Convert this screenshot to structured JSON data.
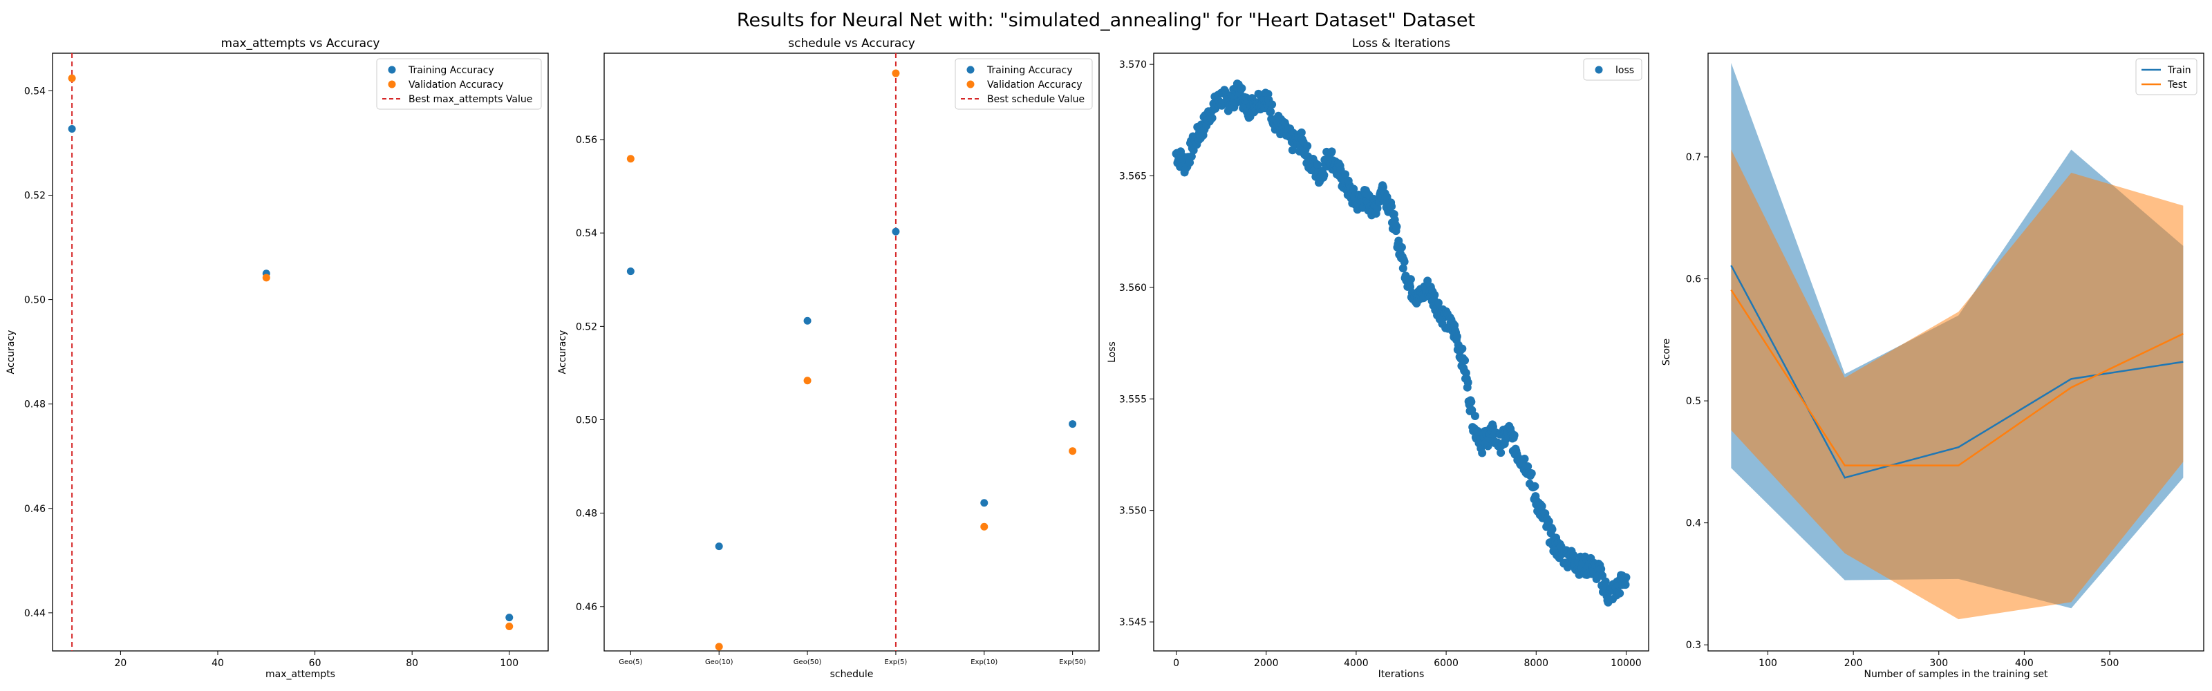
{
  "figure": {
    "title": "Results for Neural Net with: \"simulated_annealing\" for \"Heart Dataset\" Dataset"
  },
  "colors": {
    "train": "#1f77b4",
    "validation": "#ff7f0e",
    "best_line": "#d62728",
    "train_band": "#1f77b4",
    "test_band": "#ff7f0e"
  },
  "chart_data": [
    {
      "type": "scatter",
      "title": "max_attempts vs Accuracy",
      "xlabel": "max_attempts",
      "ylabel": "Accuracy",
      "xlim": [
        6,
        108
      ],
      "ylim": [
        0.4327,
        0.5472
      ],
      "xticks": [
        20,
        40,
        60,
        80,
        100
      ],
      "yticks": [
        0.44,
        0.46,
        0.48,
        0.5,
        0.52,
        0.54
      ],
      "ytick_labels": [
        "0.44",
        "0.46",
        "0.48",
        "0.50",
        "0.52",
        "0.54"
      ],
      "series": [
        {
          "name": "Training Accuracy",
          "x": [
            10,
            50,
            100
          ],
          "values": [
            0.5327,
            0.505,
            0.4391
          ]
        },
        {
          "name": "Validation Accuracy",
          "x": [
            10,
            50,
            100
          ],
          "values": [
            0.5424,
            0.5042,
            0.4374
          ]
        }
      ],
      "vline": {
        "name": "Best max_attempts Value",
        "x": 10
      },
      "legend": "top-right",
      "grid": false
    },
    {
      "type": "scatter",
      "title": "schedule vs Accuracy",
      "xlabel": "schedule",
      "ylabel": "Accuracy",
      "categories": [
        "Geo(5)",
        "Geo(10)",
        "Geo(50)",
        "Exp(5)",
        "Exp(10)",
        "Exp(50)"
      ],
      "ylim": [
        0.4505,
        0.5785
      ],
      "yticks": [
        0.46,
        0.48,
        0.5,
        0.52,
        0.54,
        0.56
      ],
      "ytick_labels": [
        "0.46",
        "0.48",
        "0.50",
        "0.52",
        "0.54",
        "0.56"
      ],
      "series": [
        {
          "name": "Training Accuracy",
          "values": [
            0.5318,
            0.4729,
            0.5212,
            0.5403,
            0.4822,
            0.4991
          ]
        },
        {
          "name": "Validation Accuracy",
          "values": [
            0.5559,
            0.4514,
            0.5084,
            0.5742,
            0.4771,
            0.4933
          ]
        }
      ],
      "vline": {
        "name": "Best schedule Value",
        "category": "Exp(5)"
      },
      "legend": "top-right",
      "grid": false
    },
    {
      "type": "scatter",
      "title": "Loss & Iterations",
      "xlabel": "Iterations",
      "ylabel": "Loss",
      "xlim": [
        -500,
        10500
      ],
      "ylim": [
        3.5437,
        3.5705
      ],
      "xticks": [
        0,
        2000,
        4000,
        6000,
        8000,
        10000
      ],
      "yticks": [
        3.545,
        3.55,
        3.555,
        3.56,
        3.565,
        3.57
      ],
      "ytick_labels": [
        "3.545",
        "3.550",
        "3.555",
        "3.560",
        "3.565",
        "3.570"
      ],
      "series": [
        {
          "name": "loss",
          "x": [
            0,
            200,
            400,
            600,
            800,
            1000,
            1200,
            1400,
            1600,
            1800,
            2000,
            2200,
            2400,
            2600,
            2800,
            3000,
            3200,
            3400,
            3600,
            3800,
            4000,
            4200,
            4400,
            4600,
            4800,
            5000,
            5200,
            5400,
            5600,
            5800,
            6000,
            6200,
            6400,
            6600,
            6800,
            7000,
            7200,
            7400,
            7600,
            7800,
            8000,
            8200,
            8400,
            8600,
            8800,
            9000,
            9200,
            9400,
            9600,
            9800,
            10000
          ],
          "values": [
            3.566,
            3.5655,
            3.5665,
            3.5672,
            3.568,
            3.5685,
            3.5683,
            3.5688,
            3.568,
            3.5684,
            3.5685,
            3.5675,
            3.567,
            3.5665,
            3.5665,
            3.5655,
            3.565,
            3.566,
            3.5652,
            3.5645,
            3.5638,
            3.564,
            3.5635,
            3.5645,
            3.5632,
            3.5615,
            3.56,
            3.5595,
            3.56,
            3.5592,
            3.5585,
            3.558,
            3.5565,
            3.554,
            3.553,
            3.5535,
            3.553,
            3.5535,
            3.5525,
            3.552,
            3.5505,
            3.5495,
            3.5485,
            3.548,
            3.5478,
            3.5475,
            3.5475,
            3.5472,
            3.5462,
            3.5465,
            3.547
          ]
        }
      ],
      "legend": "top-right",
      "grid": false
    },
    {
      "type": "line",
      "title": "",
      "xlabel": "Number of samples in the training set",
      "ylabel": "Score",
      "xlim": [
        30,
        610
      ],
      "ylim": [
        0.295,
        0.785
      ],
      "xticks": [
        100,
        200,
        300,
        400,
        500
      ],
      "yticks": [
        0.3,
        0.4,
        0.5,
        0.6,
        0.7
      ],
      "ytick_labels": [
        "0.3",
        "0.4",
        "0.5",
        "0.6",
        "0.7"
      ],
      "x": [
        57,
        190,
        323,
        455,
        586
      ],
      "series": [
        {
          "name": "Train",
          "values": [
            0.611,
            0.437,
            0.462,
            0.518,
            0.532
          ],
          "upper": [
            0.777,
            0.522,
            0.57,
            0.706,
            0.627
          ],
          "lower": [
            0.445,
            0.353,
            0.354,
            0.33,
            0.437
          ]
        },
        {
          "name": "Test",
          "values": [
            0.591,
            0.447,
            0.447,
            0.511,
            0.555
          ],
          "upper": [
            0.706,
            0.519,
            0.573,
            0.687,
            0.66
          ],
          "lower": [
            0.476,
            0.375,
            0.321,
            0.335,
            0.45
          ]
        }
      ],
      "legend": "top-right",
      "grid": false
    }
  ]
}
